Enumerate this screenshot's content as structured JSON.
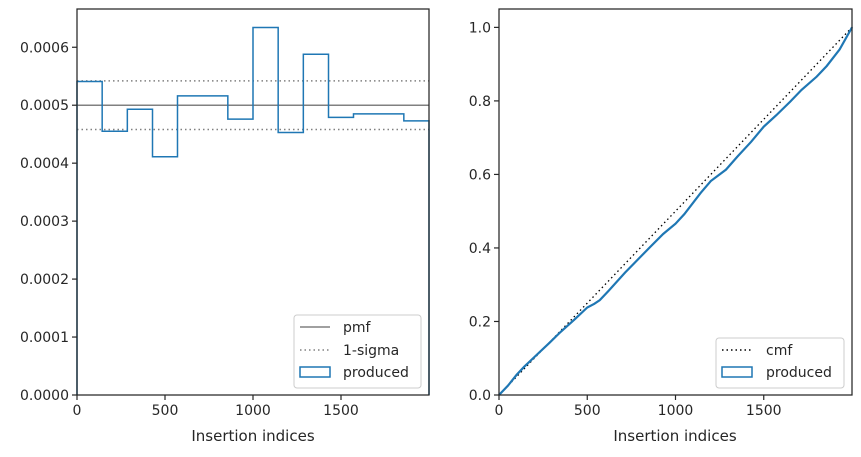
{
  "chart_data": [
    {
      "type": "step",
      "xlabel": "Insertion indices",
      "ylabel": "",
      "xlim": [
        0,
        2000
      ],
      "ylim": [
        0,
        0.000666
      ],
      "xticks": [
        0,
        500,
        1000,
        1500
      ],
      "xtick_labels": [
        "0",
        "500",
        "1000",
        "1500"
      ],
      "yticks": [
        0,
        0.0001,
        0.0002,
        0.0003,
        0.0004,
        0.0005,
        0.0006
      ],
      "ytick_labels": [
        "0.0000",
        "0.0001",
        "0.0002",
        "0.0003",
        "0.0004",
        "0.0005",
        "0.0006"
      ],
      "pmf": 0.0005,
      "sigma_upper": 0.000542,
      "sigma_lower": 0.000458,
      "bin_edges": [
        0,
        143,
        286,
        429,
        571,
        714,
        857,
        1000,
        1143,
        1286,
        1429,
        1571,
        1714,
        1857,
        2000
      ],
      "produced": [
        0.000541,
        0.000455,
        0.000493,
        0.000411,
        0.000516,
        0.000516,
        0.000476,
        0.000634,
        0.000453,
        0.000588,
        0.000479,
        0.000485,
        0.000485,
        0.000473
      ],
      "legend": {
        "position": "lower-right",
        "entries": [
          {
            "label": "pmf",
            "style": "line",
            "color": "#808080"
          },
          {
            "label": "1-sigma",
            "style": "dotted",
            "color": "#808080"
          },
          {
            "label": "produced",
            "style": "patch",
            "color": "#1f77b4"
          }
        ]
      }
    },
    {
      "type": "line",
      "xlabel": "Insertion indices",
      "ylabel": "",
      "xlim": [
        0,
        2000
      ],
      "ylim": [
        0,
        1.05
      ],
      "xticks": [
        0,
        500,
        1000,
        1500
      ],
      "xtick_labels": [
        "0",
        "500",
        "1000",
        "1500"
      ],
      "yticks": [
        0,
        0.2,
        0.4,
        0.6,
        0.8,
        1.0
      ],
      "ytick_labels": [
        "0.0",
        "0.2",
        "0.4",
        "0.6",
        "0.8",
        "1.0"
      ],
      "cmf": {
        "x": [
          0,
          2000
        ],
        "y": [
          0,
          1.0
        ]
      },
      "produced": {
        "x": [
          0,
          50,
          100,
          143,
          200,
          286,
          350,
          429,
          500,
          540,
          571,
          620,
          714,
          800,
          857,
          930,
          1000,
          1050,
          1143,
          1200,
          1286,
          1350,
          1429,
          1500,
          1571,
          1650,
          1714,
          1800,
          1857,
          1930,
          2000
        ],
        "y": [
          0,
          0.025,
          0.055,
          0.077,
          0.103,
          0.142,
          0.172,
          0.206,
          0.238,
          0.248,
          0.258,
          0.283,
          0.333,
          0.375,
          0.403,
          0.438,
          0.466,
          0.492,
          0.55,
          0.582,
          0.613,
          0.648,
          0.689,
          0.73,
          0.761,
          0.798,
          0.83,
          0.866,
          0.895,
          0.94,
          1.0
        ]
      },
      "legend": {
        "position": "lower-right",
        "entries": [
          {
            "label": "cmf",
            "style": "dotted",
            "color": "#000000"
          },
          {
            "label": "produced",
            "style": "patch",
            "color": "#1f77b4"
          }
        ]
      }
    }
  ]
}
